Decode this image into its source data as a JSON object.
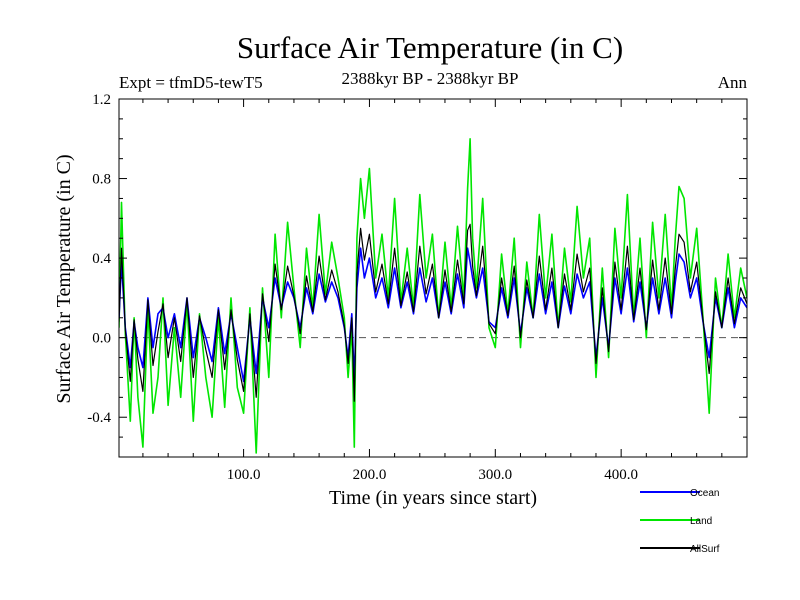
{
  "chart_data": {
    "type": "line",
    "title": "Surface Air Temperature (in C)",
    "subtitle": "2388kyr BP - 2388kyr BP",
    "experiment_label": "Expt = tfmD5-tewT5",
    "season_label": "Ann",
    "xlabel": "Time (in years since start)",
    "ylabel": "Surface Air Temperature (in C)",
    "xlim": [
      1,
      500
    ],
    "ylim": [
      -0.6,
      1.2
    ],
    "x_ticks": [
      {
        "value": 100,
        "label": "100.0"
      },
      {
        "value": 200,
        "label": "200.0"
      },
      {
        "value": 300,
        "label": "300.0"
      },
      {
        "value": 400,
        "label": "400.0"
      }
    ],
    "y_ticks": [
      {
        "value": -0.4,
        "label": "-0.4"
      },
      {
        "value": 0.0,
        "label": "0.0"
      },
      {
        "value": 0.4,
        "label": "0.4"
      },
      {
        "value": 0.8,
        "label": "0.8"
      },
      {
        "value": 1.2,
        "label": "1.2"
      }
    ],
    "reference_line": 0.0,
    "legend_position": "bottom-right, outside plot",
    "series": [
      {
        "name": "Land",
        "color": "#00e600",
        "x": [
          1,
          3,
          6,
          10,
          13,
          16,
          20,
          24,
          28,
          32,
          36,
          40,
          45,
          50,
          55,
          60,
          65,
          70,
          75,
          80,
          85,
          90,
          95,
          100,
          105,
          110,
          115,
          120,
          125,
          130,
          135,
          140,
          145,
          150,
          155,
          160,
          165,
          170,
          175,
          180,
          183,
          186,
          188,
          190,
          193,
          196,
          200,
          205,
          210,
          215,
          220,
          225,
          230,
          235,
          240,
          245,
          250,
          255,
          260,
          265,
          270,
          275,
          278,
          280,
          282,
          285,
          290,
          295,
          300,
          305,
          310,
          315,
          320,
          325,
          330,
          335,
          340,
          345,
          350,
          355,
          360,
          365,
          370,
          375,
          380,
          385,
          390,
          395,
          400,
          405,
          410,
          415,
          420,
          425,
          430,
          435,
          440,
          443,
          446,
          450,
          455,
          460,
          465,
          470,
          475,
          480,
          485,
          490,
          495,
          500
        ],
        "values": [
          0.05,
          0.68,
          0.02,
          -0.42,
          0.1,
          -0.3,
          -0.55,
          0.15,
          -0.38,
          -0.2,
          0.2,
          -0.34,
          0.05,
          -0.3,
          0.18,
          -0.42,
          0.12,
          -0.2,
          -0.4,
          0.1,
          -0.35,
          0.2,
          -0.25,
          -0.38,
          0.15,
          -0.58,
          0.25,
          -0.2,
          0.52,
          0.1,
          0.58,
          0.25,
          -0.05,
          0.45,
          0.15,
          0.62,
          0.22,
          0.48,
          0.3,
          0.1,
          -0.2,
          0.05,
          -0.55,
          0.5,
          0.8,
          0.6,
          0.85,
          0.3,
          0.52,
          0.2,
          0.7,
          0.18,
          0.45,
          0.15,
          0.72,
          0.3,
          0.52,
          0.1,
          0.48,
          0.15,
          0.56,
          0.2,
          0.75,
          1.0,
          0.5,
          0.25,
          0.7,
          0.05,
          -0.05,
          0.42,
          0.12,
          0.5,
          -0.05,
          0.38,
          0.1,
          0.62,
          0.2,
          0.52,
          0.05,
          0.45,
          0.18,
          0.66,
          0.3,
          0.5,
          -0.2,
          0.35,
          -0.1,
          0.55,
          0.2,
          0.72,
          0.1,
          0.5,
          0.0,
          0.58,
          0.2,
          0.62,
          0.15,
          0.5,
          0.76,
          0.7,
          0.3,
          0.55,
          0.1,
          -0.38,
          0.3,
          0.05,
          0.42,
          0.1,
          0.35,
          0.2
        ]
      },
      {
        "name": "Ocean",
        "color": "#0000ff",
        "x": [
          1,
          3,
          6,
          10,
          13,
          16,
          20,
          24,
          28,
          32,
          36,
          40,
          45,
          50,
          55,
          60,
          65,
          70,
          75,
          80,
          85,
          90,
          95,
          100,
          105,
          110,
          115,
          120,
          125,
          130,
          135,
          140,
          145,
          150,
          155,
          160,
          165,
          170,
          175,
          180,
          183,
          186,
          188,
          190,
          193,
          196,
          200,
          205,
          210,
          215,
          220,
          225,
          230,
          235,
          240,
          245,
          250,
          255,
          260,
          265,
          270,
          275,
          278,
          280,
          282,
          285,
          290,
          295,
          300,
          305,
          310,
          315,
          320,
          325,
          330,
          335,
          340,
          345,
          350,
          355,
          360,
          365,
          370,
          375,
          380,
          385,
          390,
          395,
          400,
          405,
          410,
          415,
          420,
          425,
          430,
          435,
          440,
          443,
          446,
          450,
          455,
          460,
          465,
          470,
          475,
          480,
          485,
          490,
          495,
          500
        ],
        "values": [
          0.1,
          0.38,
          0.05,
          -0.15,
          0.08,
          -0.05,
          -0.15,
          0.2,
          -0.05,
          0.12,
          0.15,
          0.0,
          0.12,
          -0.05,
          0.2,
          -0.1,
          0.1,
          0.0,
          -0.12,
          0.15,
          -0.08,
          0.12,
          -0.05,
          -0.22,
          0.1,
          -0.18,
          0.2,
          0.05,
          0.3,
          0.15,
          0.28,
          0.2,
          0.05,
          0.25,
          0.12,
          0.32,
          0.18,
          0.28,
          0.2,
          0.05,
          -0.1,
          0.12,
          -0.22,
          0.25,
          0.45,
          0.3,
          0.4,
          0.2,
          0.3,
          0.15,
          0.35,
          0.15,
          0.28,
          0.12,
          0.35,
          0.18,
          0.3,
          0.1,
          0.28,
          0.12,
          0.32,
          0.15,
          0.45,
          0.38,
          0.3,
          0.2,
          0.35,
          0.08,
          0.05,
          0.25,
          0.1,
          0.3,
          0.02,
          0.25,
          0.1,
          0.32,
          0.12,
          0.28,
          0.05,
          0.26,
          0.12,
          0.32,
          0.2,
          0.28,
          -0.1,
          0.2,
          -0.05,
          0.3,
          0.12,
          0.35,
          0.08,
          0.28,
          0.05,
          0.3,
          0.12,
          0.3,
          0.1,
          0.28,
          0.42,
          0.38,
          0.2,
          0.3,
          0.08,
          -0.1,
          0.2,
          0.05,
          0.25,
          0.05,
          0.2,
          0.15
        ]
      },
      {
        "name": "AllSurf",
        "color": "#000000",
        "x": [
          1,
          3,
          6,
          10,
          13,
          16,
          20,
          24,
          28,
          32,
          36,
          40,
          45,
          50,
          55,
          60,
          65,
          70,
          75,
          80,
          85,
          90,
          95,
          100,
          105,
          110,
          115,
          120,
          125,
          130,
          135,
          140,
          145,
          150,
          155,
          160,
          165,
          170,
          175,
          180,
          183,
          186,
          188,
          190,
          193,
          196,
          200,
          205,
          210,
          215,
          220,
          225,
          230,
          235,
          240,
          245,
          250,
          255,
          260,
          265,
          270,
          275,
          278,
          280,
          282,
          285,
          290,
          295,
          300,
          305,
          310,
          315,
          320,
          325,
          330,
          335,
          340,
          345,
          350,
          355,
          360,
          365,
          370,
          375,
          380,
          385,
          390,
          395,
          400,
          405,
          410,
          415,
          420,
          425,
          430,
          435,
          440,
          443,
          446,
          450,
          455,
          460,
          465,
          470,
          475,
          480,
          485,
          490,
          495,
          500
        ],
        "values": [
          0.08,
          0.45,
          0.04,
          -0.22,
          0.09,
          -0.11,
          -0.27,
          0.19,
          -0.14,
          0.03,
          0.17,
          -0.1,
          0.1,
          -0.12,
          0.2,
          -0.2,
          0.11,
          -0.06,
          -0.2,
          0.14,
          -0.16,
          0.14,
          -0.11,
          -0.27,
          0.12,
          -0.3,
          0.22,
          -0.02,
          0.37,
          0.14,
          0.36,
          0.21,
          0.02,
          0.31,
          0.13,
          0.41,
          0.19,
          0.34,
          0.23,
          0.06,
          -0.13,
          0.1,
          -0.32,
          0.32,
          0.55,
          0.39,
          0.52,
          0.23,
          0.37,
          0.17,
          0.45,
          0.16,
          0.33,
          0.13,
          0.46,
          0.22,
          0.37,
          0.1,
          0.34,
          0.13,
          0.39,
          0.17,
          0.54,
          0.57,
          0.36,
          0.21,
          0.46,
          0.07,
          0.02,
          0.3,
          0.11,
          0.36,
          0.0,
          0.29,
          0.1,
          0.41,
          0.14,
          0.35,
          0.05,
          0.32,
          0.14,
          0.42,
          0.23,
          0.35,
          -0.13,
          0.25,
          -0.07,
          0.38,
          0.14,
          0.46,
          0.09,
          0.35,
          0.04,
          0.39,
          0.14,
          0.4,
          0.12,
          0.35,
          0.52,
          0.48,
          0.23,
          0.38,
          0.09,
          -0.18,
          0.23,
          0.05,
          0.3,
          0.07,
          0.25,
          0.17
        ]
      }
    ],
    "legend": [
      {
        "name": "Ocean",
        "color": "#0000ff"
      },
      {
        "name": "Land",
        "color": "#00e600"
      },
      {
        "name": "AllSurf",
        "color": "#000000"
      }
    ]
  }
}
